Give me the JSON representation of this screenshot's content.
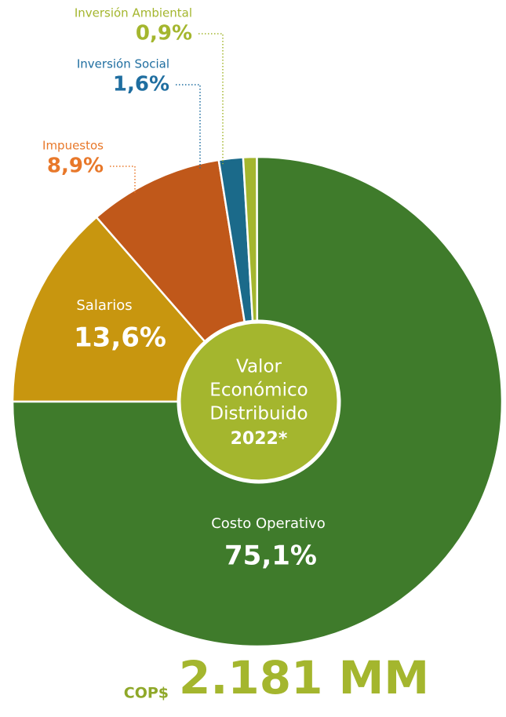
{
  "chart_data": {
    "type": "pie",
    "categories": [
      "Salarios",
      "Impuestos",
      "Inversión Social",
      "Inversión Ambiental",
      "Costo Operativo"
    ],
    "values": [
      13.6,
      8.9,
      1.6,
      0.9,
      75.1
    ],
    "value_labels": [
      "13,6%",
      "8,9%",
      "1,6%",
      "0,9%",
      "75,1%"
    ],
    "colors": [
      "#c8960f",
      "#c0581a",
      "#1b6a8a",
      "#a4b62e",
      "#3f7b2b"
    ],
    "label_colors": [
      "#ffffff",
      "#e8782a",
      "#1f6ea0",
      "#a4b62e",
      "#ffffff"
    ],
    "center_title": [
      "Valor",
      "Económico",
      "Distribuido",
      "2022*"
    ],
    "total_prefix": "COP$",
    "total": "2.181 MM"
  }
}
